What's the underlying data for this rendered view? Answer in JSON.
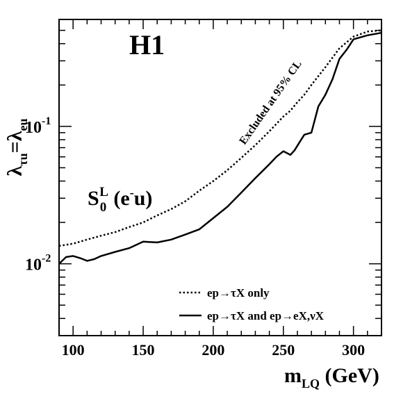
{
  "chart_data": {
    "type": "line",
    "experiment_label": "H1",
    "model": {
      "main": "S",
      "sub": "0",
      "sup": "L",
      "rest": " (e",
      "rest_sup": "-",
      "rest_tail": "u)"
    },
    "ylabel": {
      "a": "λ",
      "a_sub": "τu",
      "eq": "=",
      "b": "λ",
      "b_sub": "eu"
    },
    "xlabel": {
      "main": "m",
      "sub": "LQ",
      "unit": " (GeV)"
    },
    "xlim": [
      90,
      320
    ],
    "ylim": [
      0.003,
      0.6
    ],
    "yscale": "log",
    "x_ticks": [
      {
        "value": 100,
        "label": "100"
      },
      {
        "value": 150,
        "label": "150"
      },
      {
        "value": 200,
        "label": "200"
      },
      {
        "value": 250,
        "label": "250"
      },
      {
        "value": 300,
        "label": "300"
      }
    ],
    "y_ticks": [
      {
        "value": 0.01,
        "base": "10",
        "exp": "-2"
      },
      {
        "value": 0.1,
        "base": "10",
        "exp": "-1"
      }
    ],
    "annotation": "Excluded at 95% CL",
    "legend_position": "bottom-right",
    "series": [
      {
        "name": "ep→τX only",
        "style": "dotted",
        "x": [
          90,
          100,
          110,
          120,
          130,
          140,
          150,
          160,
          170,
          180,
          190,
          200,
          210,
          220,
          230,
          240,
          250,
          255,
          260,
          265,
          270,
          280,
          290,
          300,
          310,
          320
        ],
        "y": [
          0.0135,
          0.014,
          0.015,
          0.016,
          0.017,
          0.0185,
          0.02,
          0.0225,
          0.025,
          0.0285,
          0.034,
          0.04,
          0.048,
          0.059,
          0.073,
          0.092,
          0.118,
          0.13,
          0.15,
          0.17,
          0.2,
          0.27,
          0.37,
          0.45,
          0.49,
          0.5
        ]
      },
      {
        "name": "ep→τX and ep→eX,νX",
        "style": "solid",
        "x": [
          90,
          95,
          100,
          105,
          110,
          115,
          120,
          130,
          140,
          150,
          160,
          170,
          180,
          190,
          200,
          210,
          220,
          230,
          240,
          245,
          250,
          255,
          258,
          262,
          265,
          270,
          275,
          280,
          285,
          290,
          295,
          300,
          310,
          320
        ],
        "y": [
          0.01,
          0.0112,
          0.0114,
          0.011,
          0.0105,
          0.0108,
          0.0114,
          0.0122,
          0.013,
          0.0145,
          0.0143,
          0.015,
          0.0163,
          0.0178,
          0.0215,
          0.026,
          0.033,
          0.042,
          0.053,
          0.06,
          0.066,
          0.062,
          0.067,
          0.078,
          0.087,
          0.09,
          0.14,
          0.17,
          0.22,
          0.31,
          0.36,
          0.43,
          0.46,
          0.48
        ]
      }
    ]
  }
}
